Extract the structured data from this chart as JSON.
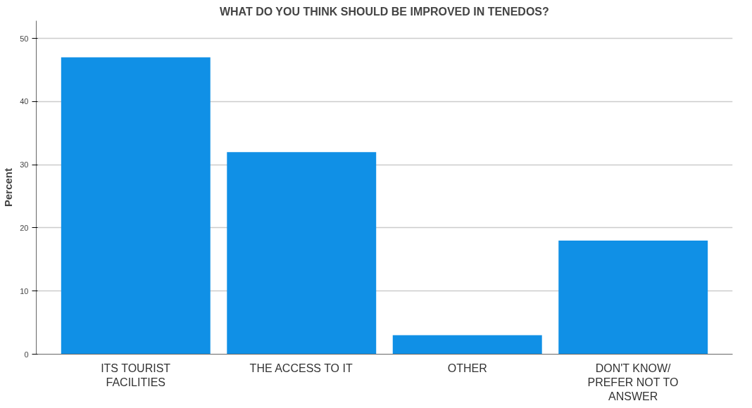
{
  "chart_data": {
    "type": "bar",
    "title": "WHAT DO YOU THINK SHOULD BE IMPROVED IN TENEDOS?",
    "ylabel": "Percent",
    "categories": [
      "ITS TOURIST\nFACILITIES",
      "THE ACCESS TO IT",
      "OTHER",
      "DON'T KNOW/\nPREFER NOT TO\nANSWER"
    ],
    "values": [
      47,
      32,
      3,
      18
    ],
    "color": "#1090e6",
    "ylim": [
      0,
      52.8
    ],
    "yticks": [
      0,
      10,
      20,
      30,
      40,
      50
    ],
    "grid": "y"
  }
}
